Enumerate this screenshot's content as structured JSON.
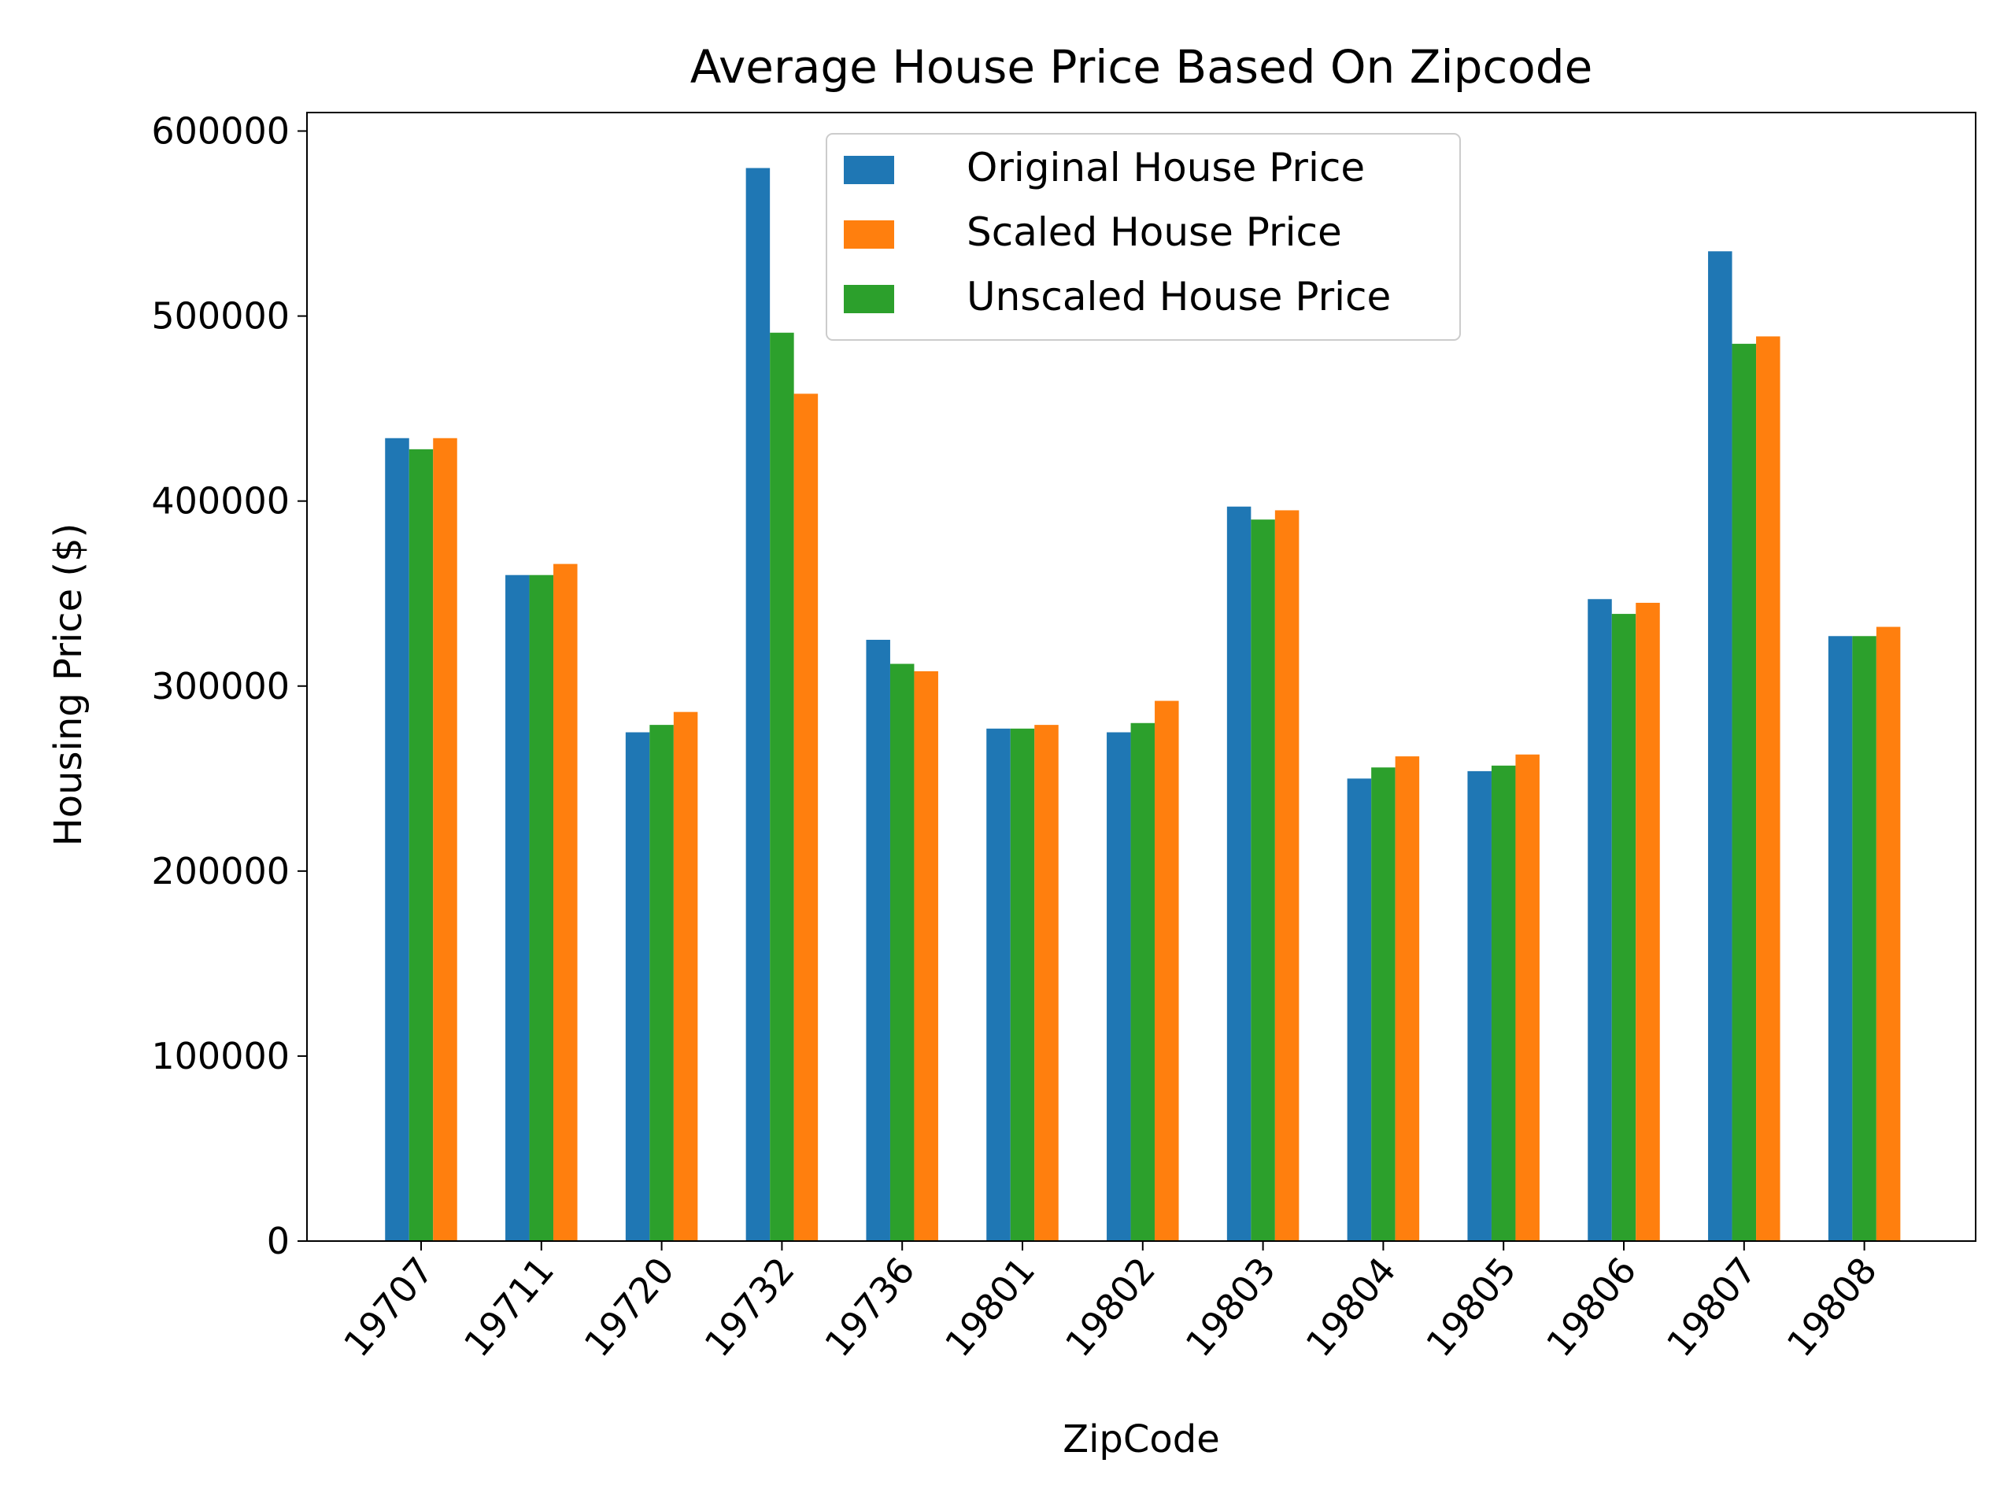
{
  "chart_data": {
    "type": "bar",
    "title": "Average House Price Based On Zipcode",
    "xlabel": "ZipCode",
    "ylabel": "Housing Price ($)",
    "ylim": [
      0,
      610000
    ],
    "yticks": [
      0,
      100000,
      200000,
      300000,
      400000,
      500000,
      600000
    ],
    "ytick_labels": [
      "0",
      "100000",
      "200000",
      "300000",
      "400000",
      "500000",
      "600000"
    ],
    "categories": [
      "19707",
      "19711",
      "19720",
      "19732",
      "19736",
      "19801",
      "19802",
      "19803",
      "19804",
      "19805",
      "19806",
      "19807",
      "19808"
    ],
    "series": [
      {
        "name": "Original House Price",
        "color": "#1f77b4",
        "values": [
          434000,
          360000,
          275000,
          580000,
          325000,
          277000,
          275000,
          397000,
          250000,
          254000,
          347000,
          535000,
          327000
        ]
      },
      {
        "name": "Unscaled House Price",
        "color": "#2ca02c",
        "values": [
          428000,
          360000,
          279000,
          491000,
          312000,
          277000,
          280000,
          390000,
          256000,
          257000,
          339000,
          485000,
          327000
        ]
      },
      {
        "name": "Scaled House Price",
        "color": "#ff7f0e",
        "values": [
          434000,
          366000,
          286000,
          458000,
          308000,
          279000,
          292000,
          395000,
          262000,
          263000,
          345000,
          489000,
          332000
        ]
      }
    ],
    "legend": {
      "position": "top-center",
      "order": [
        "Original House Price",
        "Scaled House Price",
        "Unscaled House Price"
      ]
    },
    "grid": false
  }
}
